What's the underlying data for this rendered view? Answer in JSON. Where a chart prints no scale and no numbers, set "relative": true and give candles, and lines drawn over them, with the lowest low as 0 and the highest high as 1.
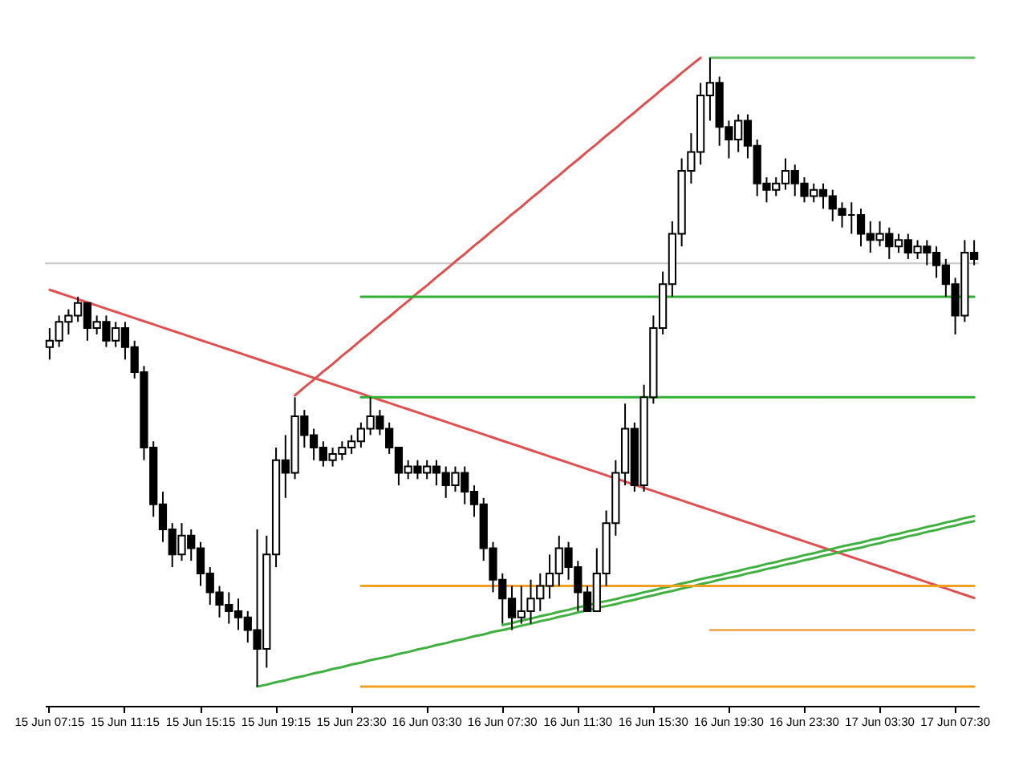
{
  "chart_data": {
    "type": "candlestick",
    "relative": true,
    "categories": [
      "15 Jun 07:15",
      null,
      null,
      null,
      null,
      null,
      null,
      null,
      "15 Jun 11:15",
      null,
      null,
      null,
      null,
      null,
      null,
      null,
      "15 Jun 15:15",
      null,
      null,
      null,
      null,
      null,
      null,
      null,
      "15 Jun 19:15",
      null,
      null,
      null,
      null,
      null,
      null,
      null,
      "15 Jun 23:30",
      null,
      null,
      null,
      null,
      null,
      null,
      null,
      "16 Jun 03:30",
      null,
      null,
      null,
      null,
      null,
      null,
      null,
      "16 Jun 07:30",
      null,
      null,
      null,
      null,
      null,
      null,
      null,
      "16 Jun 11:30",
      null,
      null,
      null,
      null,
      null,
      null,
      null,
      "16 Jun 15:30",
      null,
      null,
      null,
      null,
      null,
      null,
      null,
      "16 Jun 19:30",
      null,
      null,
      null,
      null,
      null,
      null,
      null,
      "16 Jun 23:30",
      null,
      null,
      null,
      null,
      null,
      null,
      null,
      "17 Jun 03:30",
      null,
      null,
      null,
      null,
      null,
      null,
      null,
      "17 Jun 07:30",
      null,
      null
    ],
    "ohlc": [
      [
        0.54,
        0.57,
        0.52,
        0.55
      ],
      [
        0.55,
        0.59,
        0.54,
        0.58
      ],
      [
        0.58,
        0.6,
        0.56,
        0.59
      ],
      [
        0.59,
        0.62,
        0.58,
        0.61
      ],
      [
        0.61,
        0.61,
        0.55,
        0.57
      ],
      [
        0.57,
        0.59,
        0.56,
        0.58
      ],
      [
        0.58,
        0.59,
        0.54,
        0.55
      ],
      [
        0.55,
        0.58,
        0.54,
        0.57
      ],
      [
        0.57,
        0.58,
        0.52,
        0.54
      ],
      [
        0.54,
        0.55,
        0.49,
        0.5
      ],
      [
        0.5,
        0.51,
        0.36,
        0.38
      ],
      [
        0.38,
        0.39,
        0.27,
        0.29
      ],
      [
        0.29,
        0.31,
        0.23,
        0.25
      ],
      [
        0.25,
        0.26,
        0.19,
        0.21
      ],
      [
        0.21,
        0.26,
        0.2,
        0.24
      ],
      [
        0.24,
        0.25,
        0.2,
        0.22
      ],
      [
        0.22,
        0.23,
        0.16,
        0.18
      ],
      [
        0.18,
        0.19,
        0.13,
        0.15
      ],
      [
        0.15,
        0.16,
        0.11,
        0.13
      ],
      [
        0.13,
        0.15,
        0.1,
        0.12
      ],
      [
        0.12,
        0.14,
        0.09,
        0.11
      ],
      [
        0.11,
        0.12,
        0.07,
        0.09
      ],
      [
        0.09,
        0.25,
        0,
        0.06
      ],
      [
        0.06,
        0.24,
        0.03,
        0.21
      ],
      [
        0.21,
        0.38,
        0.19,
        0.36
      ],
      [
        0.36,
        0.4,
        0.3,
        0.34
      ],
      [
        0.34,
        0.46,
        0.33,
        0.43
      ],
      [
        0.43,
        0.44,
        0.38,
        0.4
      ],
      [
        0.4,
        0.41,
        0.36,
        0.38
      ],
      [
        0.38,
        0.39,
        0.35,
        0.36
      ],
      [
        0.36,
        0.38,
        0.35,
        0.37
      ],
      [
        0.37,
        0.39,
        0.36,
        0.38
      ],
      [
        0.38,
        0.4,
        0.37,
        0.39
      ],
      [
        0.39,
        0.42,
        0.38,
        0.41
      ],
      [
        0.41,
        0.46,
        0.4,
        0.43
      ],
      [
        0.43,
        0.44,
        0.4,
        0.41
      ],
      [
        0.41,
        0.42,
        0.37,
        0.38
      ],
      [
        0.38,
        0.38,
        0.32,
        0.34
      ],
      [
        0.34,
        0.36,
        0.33,
        0.35
      ],
      [
        0.35,
        0.36,
        0.33,
        0.34
      ],
      [
        0.34,
        0.36,
        0.33,
        0.35
      ],
      [
        0.35,
        0.36,
        0.32,
        0.34
      ],
      [
        0.34,
        0.35,
        0.3,
        0.32
      ],
      [
        0.32,
        0.35,
        0.31,
        0.34
      ],
      [
        0.34,
        0.35,
        0.29,
        0.31
      ],
      [
        0.31,
        0.32,
        0.27,
        0.29
      ],
      [
        0.29,
        0.3,
        0.2,
        0.22
      ],
      [
        0.22,
        0.23,
        0.15,
        0.17
      ],
      [
        0.17,
        0.18,
        0.1,
        0.14
      ],
      [
        0.14,
        0.16,
        0.09,
        0.11
      ],
      [
        0.11,
        0.16,
        0.1,
        0.12
      ],
      [
        0.12,
        0.17,
        0.1,
        0.14
      ],
      [
        0.14,
        0.18,
        0.12,
        0.16
      ],
      [
        0.16,
        0.21,
        0.14,
        0.18
      ],
      [
        0.18,
        0.24,
        0.16,
        0.22
      ],
      [
        0.22,
        0.23,
        0.17,
        0.19
      ],
      [
        0.19,
        0.2,
        0.12,
        0.15
      ],
      [
        0.15,
        0.16,
        0.12,
        0.12
      ],
      [
        0.12,
        0.22,
        0.12,
        0.18
      ],
      [
        0.18,
        0.28,
        0.16,
        0.26
      ],
      [
        0.26,
        0.36,
        0.24,
        0.34
      ],
      [
        0.34,
        0.45,
        0.32,
        0.41
      ],
      [
        0.41,
        0.42,
        0.31,
        0.32
      ],
      [
        0.32,
        0.48,
        0.31,
        0.46
      ],
      [
        0.46,
        0.59,
        0.45,
        0.57
      ],
      [
        0.57,
        0.66,
        0.56,
        0.64
      ],
      [
        0.64,
        0.74,
        0.62,
        0.72
      ],
      [
        0.72,
        0.84,
        0.7,
        0.82
      ],
      [
        0.82,
        0.88,
        0.8,
        0.85
      ],
      [
        0.85,
        0.96,
        0.83,
        0.94
      ],
      [
        0.94,
        1,
        0.9,
        0.96
      ],
      [
        0.96,
        0.97,
        0.86,
        0.89
      ],
      [
        0.89,
        0.9,
        0.84,
        0.87
      ],
      [
        0.87,
        0.91,
        0.85,
        0.9
      ],
      [
        0.9,
        0.91,
        0.84,
        0.86
      ],
      [
        0.86,
        0.87,
        0.78,
        0.8
      ],
      [
        0.8,
        0.81,
        0.77,
        0.79
      ],
      [
        0.79,
        0.81,
        0.78,
        0.8
      ],
      [
        0.8,
        0.84,
        0.79,
        0.82
      ],
      [
        0.82,
        0.83,
        0.78,
        0.8
      ],
      [
        0.8,
        0.81,
        0.77,
        0.78
      ],
      [
        0.78,
        0.8,
        0.77,
        0.79
      ],
      [
        0.79,
        0.8,
        0.76,
        0.78
      ],
      [
        0.78,
        0.79,
        0.74,
        0.76
      ],
      [
        0.76,
        0.77,
        0.73,
        0.75
      ],
      [
        0.75,
        0.77,
        0.72,
        0.75
      ],
      [
        0.75,
        0.76,
        0.7,
        0.72
      ],
      [
        0.72,
        0.74,
        0.69,
        0.71
      ],
      [
        0.71,
        0.74,
        0.7,
        0.72
      ],
      [
        0.72,
        0.73,
        0.68,
        0.7
      ],
      [
        0.7,
        0.72,
        0.69,
        0.71
      ],
      [
        0.71,
        0.72,
        0.68,
        0.69
      ],
      [
        0.69,
        0.71,
        0.68,
        0.7
      ],
      [
        0.7,
        0.71,
        0.67,
        0.69
      ],
      [
        0.69,
        0.7,
        0.65,
        0.67
      ],
      [
        0.67,
        0.68,
        0.62,
        0.64
      ],
      [
        0.64,
        0.65,
        0.56,
        0.59
      ],
      [
        0.59,
        0.71,
        0.58,
        0.69
      ],
      [
        0.69,
        0.71,
        0.67,
        0.68
      ]
    ],
    "series": [
      {
        "type": "line",
        "color": "#e05050",
        "values": [
          0.631,
          0.626,
          0.621,
          0.616,
          0.611,
          0.606,
          0.601,
          0.596,
          0.591,
          0.586,
          0.581,
          0.576,
          0.571,
          0.566,
          0.561,
          0.556,
          0.551,
          0.546,
          0.541,
          0.536,
          0.531,
          0.526,
          0.521,
          0.516,
          0.511,
          0.506,
          0.501,
          0.496,
          0.491,
          0.486,
          0.481,
          0.476,
          0.471,
          0.466,
          0.461,
          0.456,
          0.451,
          0.446,
          0.441,
          0.436,
          0.431,
          0.426,
          0.421,
          0.416,
          0.411,
          0.406,
          0.401,
          0.396,
          0.391,
          0.386,
          0.381,
          0.376,
          0.371,
          0.366,
          0.361,
          0.356,
          0.351,
          0.346,
          0.341,
          0.336,
          0.331,
          0.326,
          0.321,
          0.316,
          0.311,
          0.306,
          0.301,
          0.296,
          0.291,
          0.286,
          0.281,
          0.276,
          0.271,
          0.266,
          0.261,
          0.256,
          0.251,
          0.246,
          0.241,
          0.236,
          0.231,
          0.226,
          0.221,
          0.216,
          0.211,
          0.206,
          0.201,
          0.196,
          0.191,
          0.186,
          0.181,
          0.176,
          0.171,
          0.166,
          0.161,
          0.156,
          0.151,
          0.146,
          0.141
        ]
      },
      {
        "type": "line",
        "color": "#e05050",
        "values": [
          null,
          null,
          null,
          null,
          null,
          null,
          null,
          null,
          null,
          null,
          null,
          null,
          null,
          null,
          null,
          null,
          null,
          null,
          null,
          null,
          null,
          null,
          null,
          null,
          null,
          null,
          0.463,
          0.476,
          0.488,
          0.501,
          0.513,
          0.526,
          0.538,
          0.551,
          0.563,
          0.576,
          0.588,
          0.601,
          0.613,
          0.626,
          0.638,
          0.651,
          0.663,
          0.676,
          0.688,
          0.701,
          0.713,
          0.726,
          0.738,
          0.751,
          0.763,
          0.776,
          0.788,
          0.801,
          0.813,
          0.826,
          0.838,
          0.851,
          0.863,
          0.876,
          0.888,
          0.901,
          0.913,
          0.926,
          0.938,
          0.951,
          0.963,
          0.976,
          0.988,
          1.0,
          null,
          null,
          null,
          null,
          null,
          null,
          null,
          null,
          null,
          null,
          null,
          null,
          null,
          null,
          null,
          null,
          null,
          null,
          null,
          null,
          null,
          null,
          null,
          null,
          null,
          null,
          null,
          null,
          null
        ]
      },
      {
        "type": "line",
        "color": "#40b040",
        "values": [
          null,
          null,
          null,
          null,
          null,
          null,
          null,
          null,
          null,
          null,
          null,
          null,
          null,
          null,
          null,
          null,
          null,
          null,
          null,
          null,
          null,
          null,
          0,
          0.003,
          0.007,
          0.01,
          0.014,
          0.017,
          0.021,
          0.024,
          0.028,
          0.031,
          0.035,
          0.038,
          0.042,
          0.045,
          0.048,
          0.052,
          0.055,
          0.059,
          0.062,
          0.066,
          0.069,
          0.073,
          0.076,
          0.08,
          0.083,
          0.087,
          0.09,
          0.093,
          0.097,
          0.1,
          0.104,
          0.107,
          0.111,
          0.114,
          0.118,
          0.121,
          0.125,
          0.128,
          0.131,
          0.135,
          0.138,
          0.142,
          0.145,
          0.149,
          0.152,
          0.156,
          0.159,
          0.163,
          0.166,
          0.17,
          0.173,
          0.176,
          0.18,
          0.183,
          0.187,
          0.19,
          0.194,
          0.197,
          0.201,
          0.204,
          0.208,
          0.211,
          0.215,
          0.218,
          0.221,
          0.225,
          0.228,
          0.232,
          0.235,
          0.239,
          0.242,
          0.246,
          0.249,
          0.253,
          0.256,
          0.26,
          0.263
        ]
      },
      {
        "type": "line",
        "color": "#40b040",
        "values": [
          null,
          null,
          null,
          null,
          null,
          null,
          null,
          null,
          null,
          null,
          null,
          null,
          null,
          null,
          null,
          null,
          null,
          null,
          null,
          null,
          null,
          null,
          null,
          null,
          null,
          null,
          null,
          null,
          null,
          null,
          null,
          null,
          null,
          null,
          null,
          null,
          null,
          null,
          null,
          null,
          null,
          null,
          null,
          null,
          null,
          null,
          null,
          null,
          0.098,
          0.101,
          0.105,
          0.108,
          0.112,
          0.115,
          0.119,
          0.122,
          0.126,
          0.129,
          0.133,
          0.136,
          0.139,
          0.143,
          0.146,
          0.15,
          0.153,
          0.157,
          0.16,
          0.164,
          0.167,
          0.171,
          0.174,
          0.177,
          0.181,
          0.184,
          0.188,
          0.191,
          0.195,
          0.198,
          0.202,
          0.205,
          0.209,
          0.212,
          0.216,
          0.219,
          0.223,
          0.226,
          0.229,
          0.233,
          0.236,
          0.24,
          0.243,
          0.247,
          0.25,
          0.254,
          0.257,
          0.261,
          0.264,
          0.268,
          0.271
        ]
      },
      {
        "type": "line",
        "color": "#60c060",
        "values": [
          null,
          null,
          null,
          null,
          null,
          null,
          null,
          null,
          null,
          null,
          null,
          null,
          null,
          null,
          null,
          null,
          null,
          null,
          null,
          null,
          null,
          null,
          null,
          null,
          null,
          null,
          null,
          null,
          null,
          null,
          null,
          null,
          null,
          null,
          null,
          null,
          null,
          null,
          null,
          null,
          null,
          null,
          null,
          null,
          null,
          null,
          null,
          null,
          null,
          null,
          null,
          null,
          null,
          null,
          null,
          null,
          null,
          null,
          null,
          null,
          null,
          null,
          null,
          null,
          null,
          null,
          null,
          null,
          null,
          null,
          1,
          1,
          1,
          1,
          1,
          1,
          1,
          1,
          1,
          1,
          1,
          1,
          1,
          1,
          1,
          1,
          1,
          1,
          1,
          1,
          1,
          1,
          1,
          1,
          1,
          1,
          1,
          1,
          1
        ]
      },
      {
        "type": "line",
        "color": "#30b030",
        "values": [
          null,
          null,
          null,
          null,
          null,
          null,
          null,
          null,
          null,
          null,
          null,
          null,
          null,
          null,
          null,
          null,
          null,
          null,
          null,
          null,
          null,
          null,
          null,
          null,
          null,
          null,
          null,
          null,
          null,
          null,
          null,
          null,
          null,
          0.62,
          0.62,
          0.62,
          0.62,
          0.62,
          0.62,
          0.62,
          0.62,
          0.62,
          0.62,
          0.62,
          0.62,
          0.62,
          0.62,
          0.62,
          0.62,
          0.62,
          0.62,
          0.62,
          0.62,
          0.62,
          0.62,
          0.62,
          0.62,
          0.62,
          0.62,
          0.62,
          0.62,
          0.62,
          0.62,
          0.62,
          0.62,
          0.62,
          0.62,
          0.62,
          0.62,
          0.62,
          0.62,
          0.62,
          0.62,
          0.62,
          0.62,
          0.62,
          0.62,
          0.62,
          0.62,
          0.62,
          0.62,
          0.62,
          0.62,
          0.62,
          0.62,
          0.62,
          0.62,
          0.62,
          0.62,
          0.62,
          0.62,
          0.62,
          0.62,
          0.62,
          0.62,
          0.62,
          0.62,
          0.62,
          0.62
        ]
      },
      {
        "type": "line",
        "color": "#30b030",
        "values": [
          null,
          null,
          null,
          null,
          null,
          null,
          null,
          null,
          null,
          null,
          null,
          null,
          null,
          null,
          null,
          null,
          null,
          null,
          null,
          null,
          null,
          null,
          null,
          null,
          null,
          null,
          null,
          null,
          null,
          null,
          null,
          null,
          null,
          0.46,
          0.46,
          0.46,
          0.46,
          0.46,
          0.46,
          0.46,
          0.46,
          0.46,
          0.46,
          0.46,
          0.46,
          0.46,
          0.46,
          0.46,
          0.46,
          0.46,
          0.46,
          0.46,
          0.46,
          0.46,
          0.46,
          0.46,
          0.46,
          0.46,
          0.46,
          0.46,
          0.46,
          0.46,
          0.46,
          0.46,
          0.46,
          0.46,
          0.46,
          0.46,
          0.46,
          0.46,
          0.46,
          0.46,
          0.46,
          0.46,
          0.46,
          0.46,
          0.46,
          0.46,
          0.46,
          0.46,
          0.46,
          0.46,
          0.46,
          0.46,
          0.46,
          0.46,
          0.46,
          0.46,
          0.46,
          0.46,
          0.46,
          0.46,
          0.46,
          0.46,
          0.46,
          0.46,
          0.46,
          0.46,
          0.46
        ]
      },
      {
        "type": "line",
        "color": "#f0a020",
        "values": [
          null,
          null,
          null,
          null,
          null,
          null,
          null,
          null,
          null,
          null,
          null,
          null,
          null,
          null,
          null,
          null,
          null,
          null,
          null,
          null,
          null,
          null,
          null,
          null,
          null,
          null,
          null,
          null,
          null,
          null,
          null,
          null,
          null,
          0.16,
          0.16,
          0.16,
          0.16,
          0.16,
          0.16,
          0.16,
          0.16,
          0.16,
          0.16,
          0.16,
          0.16,
          0.16,
          0.16,
          0.16,
          0.16,
          0.16,
          0.16,
          0.16,
          0.16,
          0.16,
          0.16,
          0.16,
          0.16,
          0.16,
          0.16,
          0.16,
          0.16,
          0.16,
          0.16,
          0.16,
          0.16,
          0.16,
          0.16,
          0.16,
          0.16,
          0.16,
          0.16,
          0.16,
          0.16,
          0.16,
          0.16,
          0.16,
          0.16,
          0.16,
          0.16,
          0.16,
          0.16,
          0.16,
          0.16,
          0.16,
          0.16,
          0.16,
          0.16,
          0.16,
          0.16,
          0.16,
          0.16,
          0.16,
          0.16,
          0.16,
          0.16,
          0.16,
          0.16,
          0.16,
          0.16
        ]
      },
      {
        "type": "line",
        "color": "#f0b060",
        "values": [
          null,
          null,
          null,
          null,
          null,
          null,
          null,
          null,
          null,
          null,
          null,
          null,
          null,
          null,
          null,
          null,
          null,
          null,
          null,
          null,
          null,
          null,
          null,
          null,
          null,
          null,
          null,
          null,
          null,
          null,
          null,
          null,
          null,
          null,
          null,
          null,
          null,
          null,
          null,
          null,
          null,
          null,
          null,
          null,
          null,
          null,
          null,
          null,
          null,
          null,
          null,
          null,
          null,
          null,
          null,
          null,
          null,
          null,
          null,
          null,
          null,
          null,
          null,
          null,
          null,
          null,
          null,
          null,
          null,
          null,
          0.09,
          0.09,
          0.09,
          0.09,
          0.09,
          0.09,
          0.09,
          0.09,
          0.09,
          0.09,
          0.09,
          0.09,
          0.09,
          0.09,
          0.09,
          0.09,
          0.09,
          0.09,
          0.09,
          0.09,
          0.09,
          0.09,
          0.09,
          0.09,
          0.09,
          0.09,
          0.09,
          0.09,
          0.09
        ]
      },
      {
        "type": "line",
        "color": "#f0a020",
        "values": [
          null,
          null,
          null,
          null,
          null,
          null,
          null,
          null,
          null,
          null,
          null,
          null,
          null,
          null,
          null,
          null,
          null,
          null,
          null,
          null,
          null,
          null,
          null,
          null,
          null,
          null,
          null,
          null,
          null,
          null,
          null,
          null,
          null,
          0,
          0,
          0,
          0,
          0,
          0,
          0,
          0,
          0,
          0,
          0,
          0,
          0,
          0,
          0,
          0,
          0,
          0,
          0,
          0,
          0,
          0,
          0,
          0,
          0,
          0,
          0,
          0,
          0,
          0,
          0,
          0,
          0,
          0,
          0,
          0,
          0,
          0,
          0,
          0,
          0,
          0,
          0,
          0,
          0,
          0,
          0,
          0,
          0,
          0,
          0,
          0,
          0,
          0,
          0,
          0,
          0,
          0,
          0,
          0,
          0,
          0,
          0,
          0,
          0,
          0
        ]
      }
    ],
    "ref_lines": [
      {
        "axis": "y",
        "value": 0.673,
        "color": "#c8c8c8"
      }
    ]
  }
}
